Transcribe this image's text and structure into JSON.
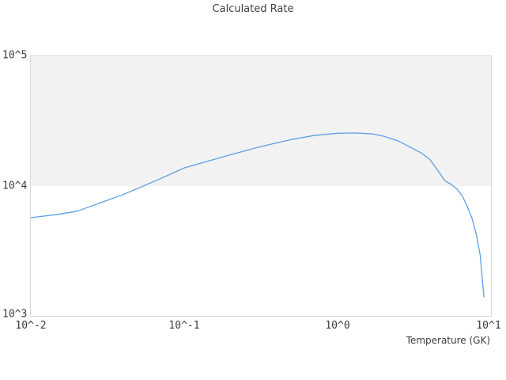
{
  "title": "Calculated Rate",
  "colors": {
    "line": "#5d9fe3",
    "band": "#f2f2f2",
    "plot_border": "#d9d9d9",
    "text": "#3a3a3a",
    "background": "#ffffff"
  },
  "chart_data": {
    "type": "line",
    "title": "Calculated Rate",
    "xlabel": "Temperature (GK)",
    "ylabel": "",
    "x_scale": "log",
    "y_scale": "log",
    "xlim": [
      0.01,
      10
    ],
    "ylim": [
      1000,
      100000
    ],
    "x_ticks": [
      "10^-2",
      "10^-1",
      "10^0",
      "10^1"
    ],
    "y_ticks": [
      "10^5",
      "10^4",
      "10^3"
    ],
    "grid": "off",
    "legend": "none",
    "shaded_band": {
      "y_from": 10000,
      "y_to": 100000,
      "color": "#f2f2f2"
    },
    "series": [
      {
        "name": "calculated-rate",
        "color": "#5d9fe3",
        "points": [
          [
            0.01,
            5700
          ],
          [
            0.015,
            6050
          ],
          [
            0.02,
            6400
          ],
          [
            0.03,
            7600
          ],
          [
            0.04,
            8600
          ],
          [
            0.05,
            9600
          ],
          [
            0.07,
            11400
          ],
          [
            0.1,
            13800
          ],
          [
            0.15,
            15800
          ],
          [
            0.2,
            17400
          ],
          [
            0.3,
            19800
          ],
          [
            0.4,
            21500
          ],
          [
            0.5,
            22800
          ],
          [
            0.7,
            24500
          ],
          [
            1.0,
            25500
          ],
          [
            1.3,
            25600
          ],
          [
            1.7,
            25200
          ],
          [
            2.0,
            24200
          ],
          [
            2.5,
            22200
          ],
          [
            3.0,
            19800
          ],
          [
            3.5,
            18000
          ],
          [
            4.0,
            16000
          ],
          [
            4.5,
            13200
          ],
          [
            5.0,
            11000
          ],
          [
            5.5,
            10300
          ],
          [
            6.0,
            9500
          ],
          [
            6.5,
            8400
          ],
          [
            7.0,
            7000
          ],
          [
            7.5,
            5700
          ],
          [
            8.0,
            4300
          ],
          [
            8.5,
            2950
          ],
          [
            9.0,
            1400
          ]
        ]
      }
    ]
  }
}
